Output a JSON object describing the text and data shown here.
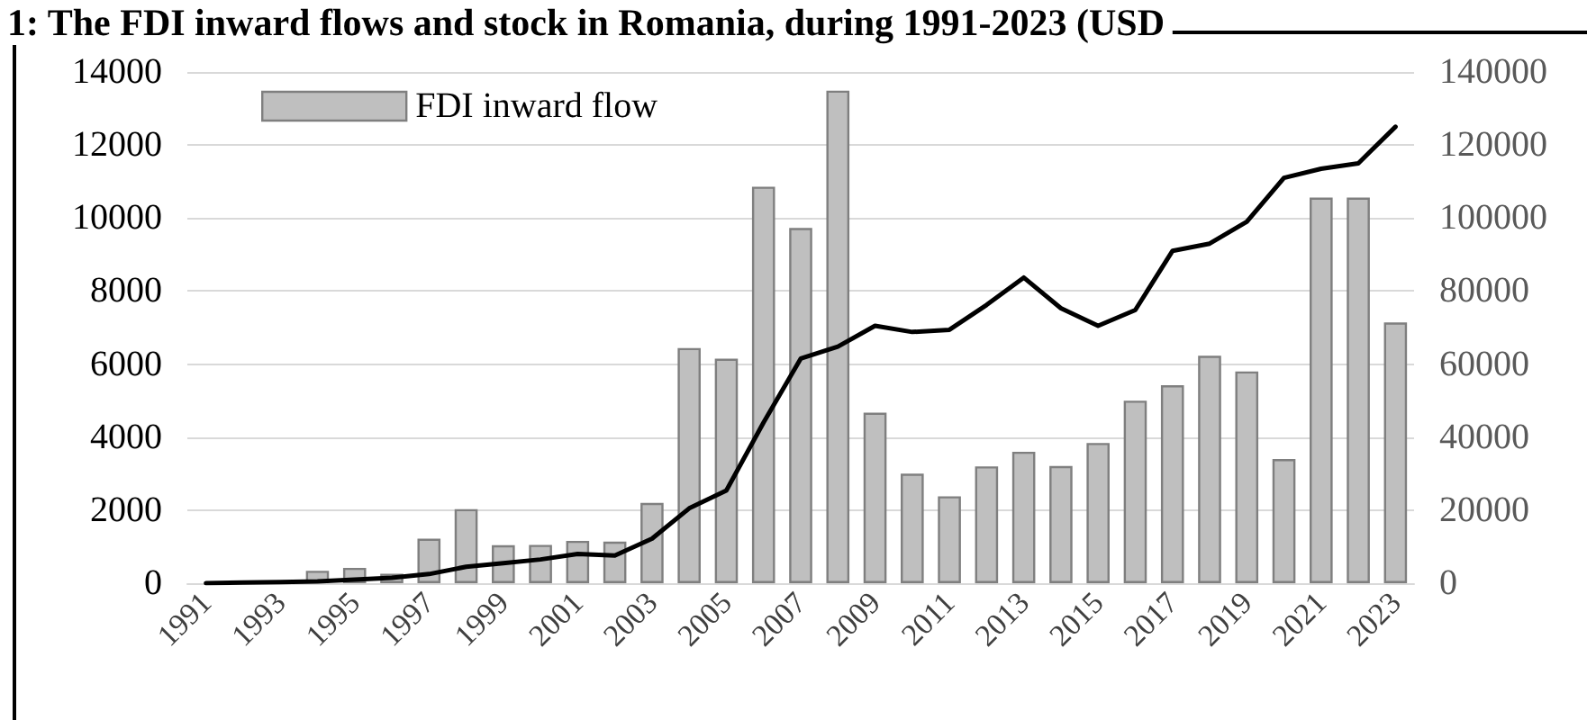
{
  "chart_data": {
    "type": "bar",
    "title": "1: The FDI inward flows and stock in Romania, during 1991-2023 (USD",
    "categories": [
      "1991",
      null,
      "1993",
      null,
      "1995",
      null,
      "1997",
      null,
      "1999",
      null,
      "2001",
      null,
      "2003",
      null,
      "2005",
      null,
      "2007",
      null,
      "2009",
      null,
      "2011",
      null,
      "2013",
      null,
      "2015",
      null,
      "2017",
      null,
      "2019",
      null,
      "2021",
      null,
      "2023"
    ],
    "series": [
      {
        "name": "FDI inward flow",
        "color": "#bfbfbf",
        "values": [
          null,
          null,
          null,
          340,
          420,
          260,
          1220,
          2030,
          1040,
          1050,
          1160,
          1140,
          2200,
          6440,
          6150,
          10860,
          9730,
          13490,
          4670,
          3000,
          2380,
          3200,
          3600,
          3210,
          3840,
          5000,
          5420,
          6230,
          5800,
          3400,
          10560,
          10560,
          7140
        ]
      },
      {
        "type": "line",
        "axis": "y2",
        "color": "#000000",
        "values": [
          0,
          200,
          300,
          500,
          1000,
          1500,
          2500,
          4500,
          5500,
          6500,
          8000,
          7600,
          12200,
          20500,
          25400,
          44000,
          61500,
          64800,
          70500,
          68800,
          69400,
          76200,
          83700,
          75300,
          70500,
          74800,
          91000,
          93000,
          99000,
          111000,
          113500,
          115000,
          125000
        ]
      }
    ],
    "ylim": [
      0,
      14000
    ],
    "yticks": [
      0,
      2000,
      4000,
      6000,
      8000,
      10000,
      12000,
      14000
    ],
    "y2lim": [
      0,
      140000
    ],
    "y2ticks": [
      0,
      20000,
      40000,
      60000,
      80000,
      100000,
      120000,
      140000
    ],
    "grid": "y",
    "legend": "top left",
    "marker": "none"
  }
}
